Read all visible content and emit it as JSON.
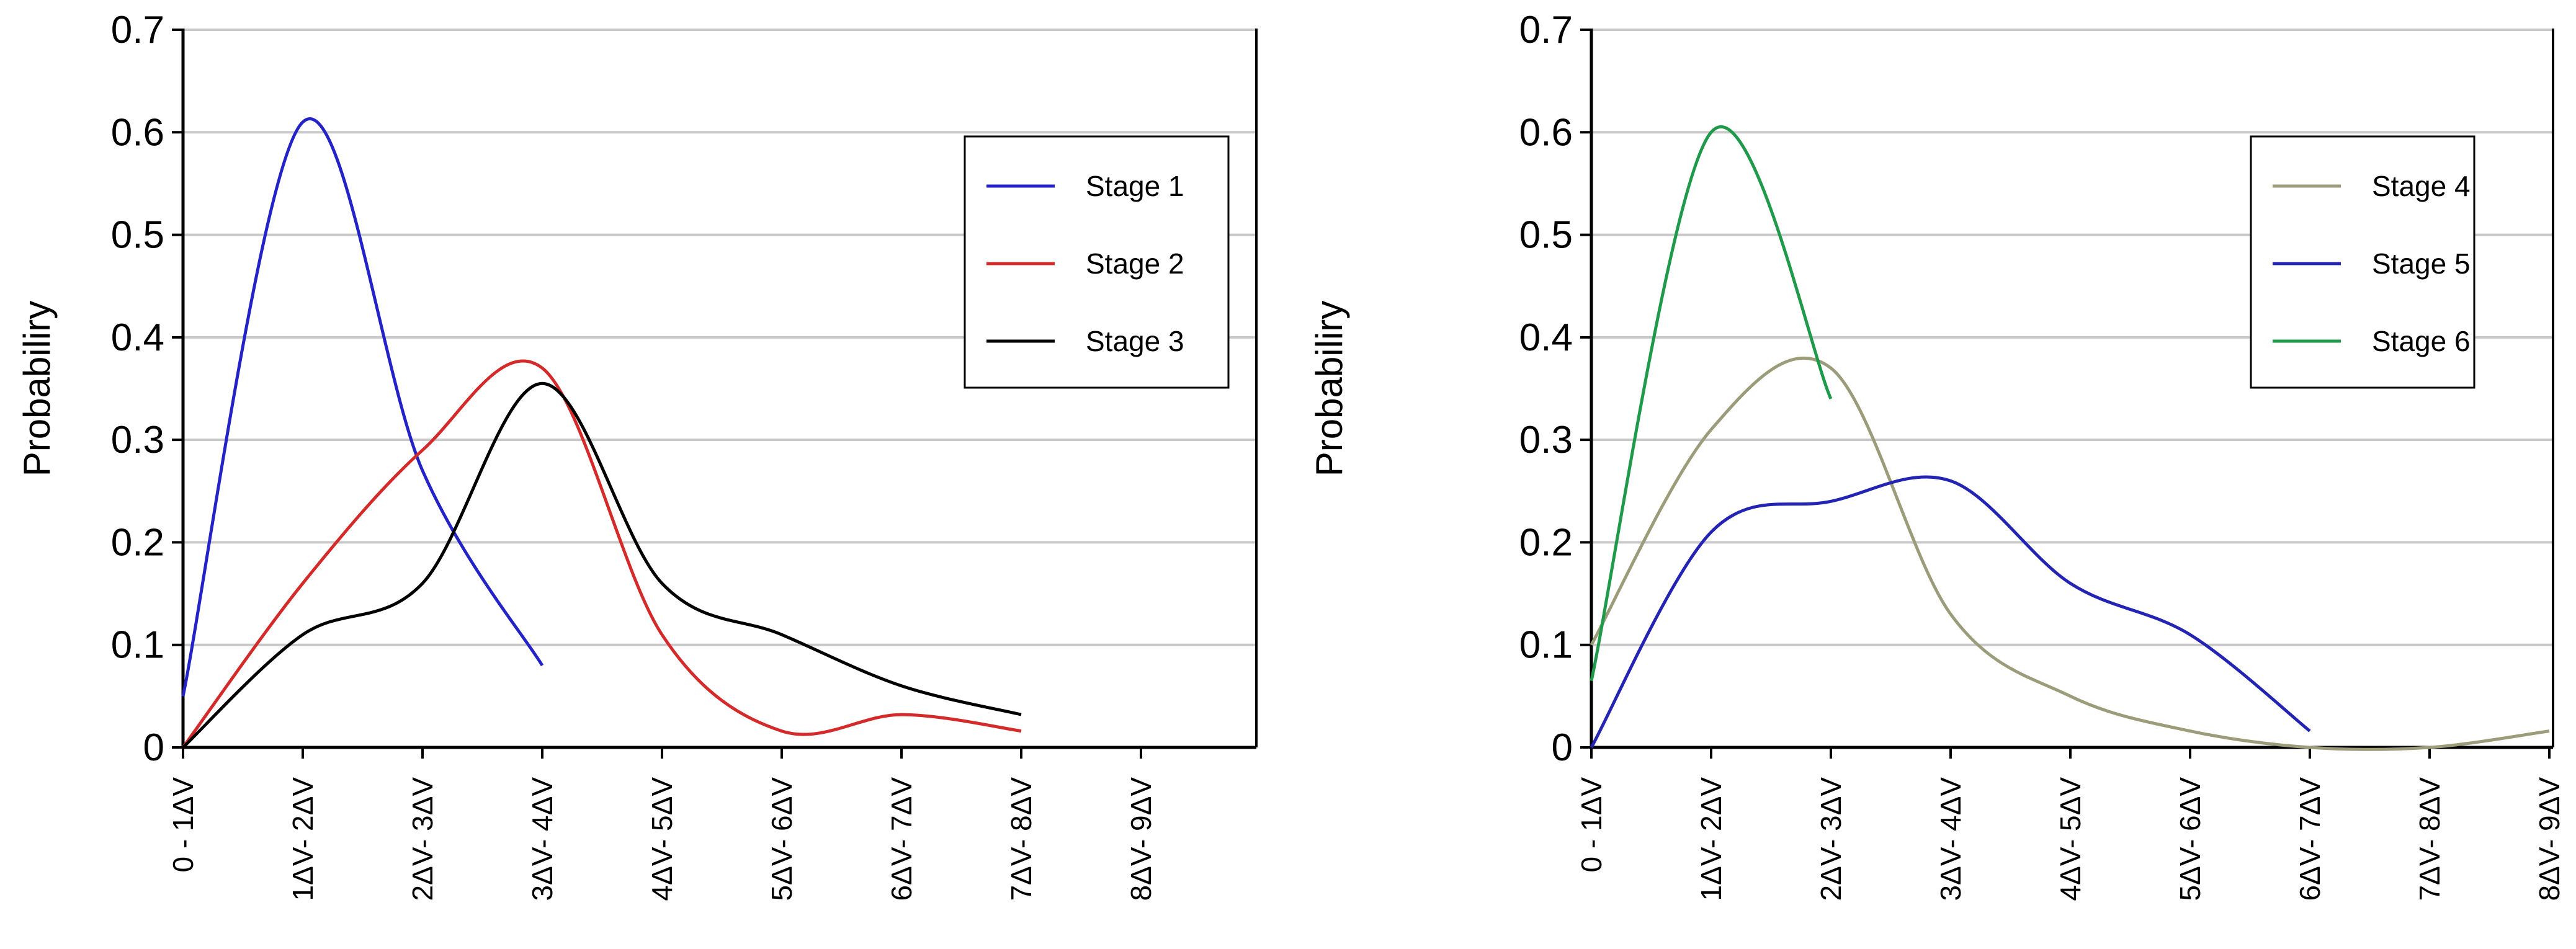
{
  "chart_data": [
    {
      "type": "line",
      "ylabel": "Probabiliry",
      "ylim": [
        0,
        0.7
      ],
      "yticks": [
        "0",
        "0.1",
        "0.2",
        "0.3",
        "0.4",
        "0.5",
        "0.6",
        "0.7"
      ],
      "categories": [
        "0 - 1ΔV",
        "1ΔV- 2ΔV",
        "2ΔV- 3ΔV",
        "3ΔV- 4ΔV",
        "4ΔV- 5ΔV",
        "5ΔV- 6ΔV",
        "6ΔV- 7ΔV",
        "7ΔV- 8ΔV",
        "8ΔV- 9ΔV"
      ],
      "grid": true,
      "legend_position": "top-right",
      "series": [
        {
          "name": "Stage 1",
          "color": "#2323c8",
          "x": [
            0,
            1,
            2,
            3
          ],
          "values": [
            0.05,
            0.61,
            0.27,
            0.08
          ]
        },
        {
          "name": "Stage 2",
          "color": "#d42a2a",
          "x": [
            0,
            1,
            2,
            3,
            4,
            5,
            6,
            7
          ],
          "values": [
            0.0,
            0.16,
            0.29,
            0.37,
            0.11,
            0.016,
            0.032,
            0.016
          ]
        },
        {
          "name": "Stage 3",
          "color": "#000000",
          "x": [
            0,
            1,
            2,
            3,
            4,
            5,
            6,
            7
          ],
          "values": [
            0.0,
            0.11,
            0.16,
            0.355,
            0.16,
            0.11,
            0.06,
            0.032
          ]
        }
      ]
    },
    {
      "type": "line",
      "ylabel": "Probabiliry",
      "ylim": [
        0,
        0.7
      ],
      "yticks": [
        "0",
        "0.1",
        "0.2",
        "0.3",
        "0.4",
        "0.5",
        "0.6",
        "0.7"
      ],
      "categories": [
        "0 - 1ΔV",
        "1ΔV- 2ΔV",
        "2ΔV- 3ΔV",
        "3ΔV- 4ΔV",
        "4ΔV- 5ΔV",
        "5ΔV- 6ΔV",
        "6ΔV- 7ΔV",
        "7ΔV- 8ΔV",
        "8ΔV- 9ΔV"
      ],
      "grid": true,
      "legend_position": "top-right",
      "series": [
        {
          "name": "Stage 4",
          "color": "#9c9c7a",
          "x": [
            0,
            1,
            2,
            3,
            4,
            5,
            6,
            7,
            8
          ],
          "values": [
            0.1,
            0.31,
            0.37,
            0.13,
            0.05,
            0.016,
            0.0,
            0.0,
            0.016
          ]
        },
        {
          "name": "Stage 5",
          "color": "#2323b4",
          "x": [
            0,
            1,
            2,
            3,
            4,
            5,
            6
          ],
          "values": [
            0.0,
            0.21,
            0.24,
            0.26,
            0.16,
            0.11,
            0.016
          ]
        },
        {
          "name": "Stage 6",
          "color": "#1f9a4a",
          "x": [
            0,
            1,
            2
          ],
          "values": [
            0.065,
            0.6,
            0.34
          ]
        }
      ]
    }
  ]
}
